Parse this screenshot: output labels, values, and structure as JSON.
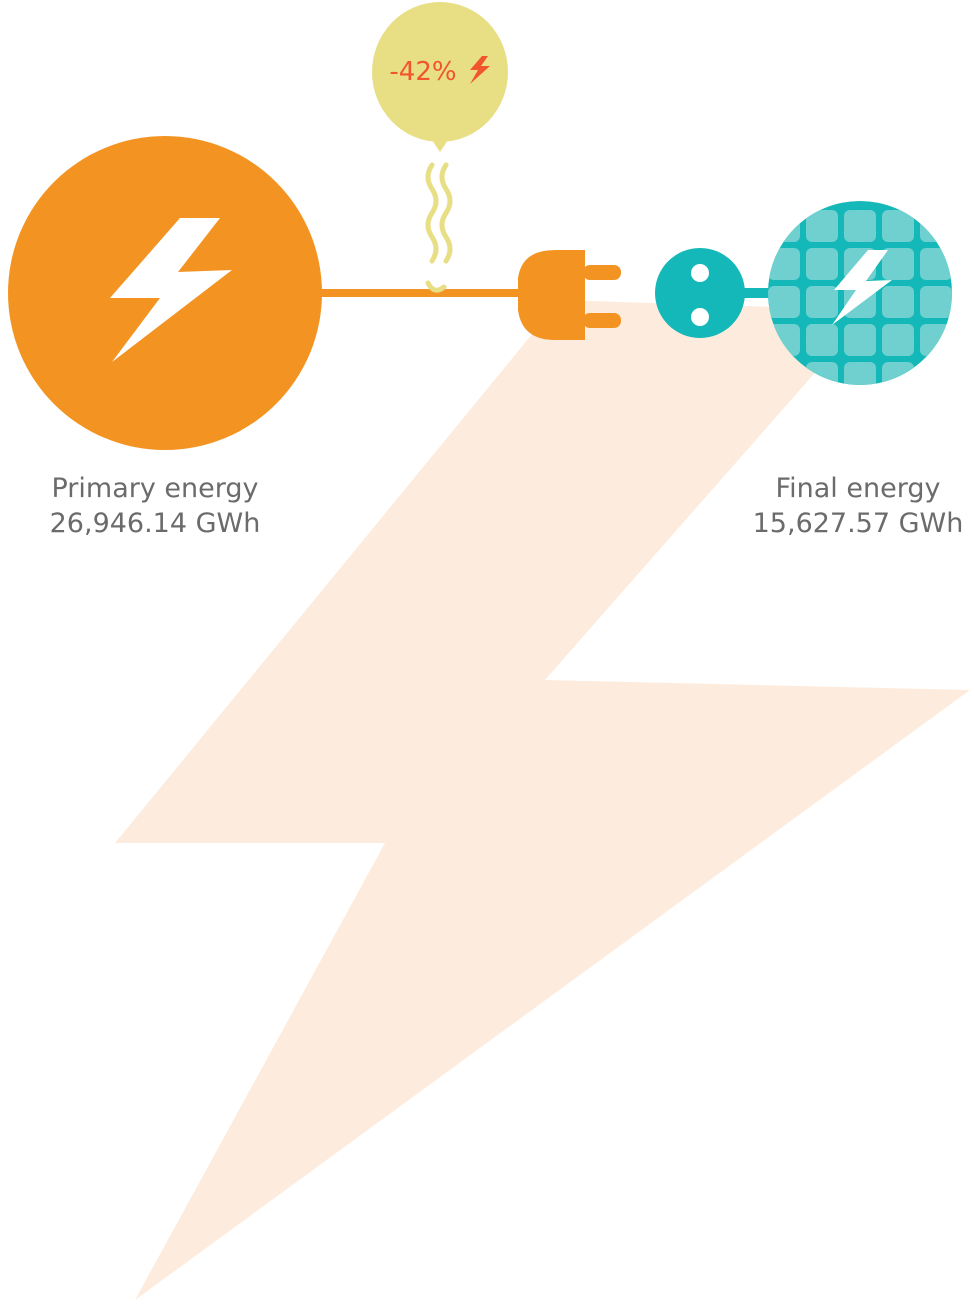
{
  "balloon": {
    "label": "-42%"
  },
  "primary": {
    "label": "Primary energy",
    "value": "26,946.14 GWh"
  },
  "final": {
    "label": "Final energy",
    "value": "15,627.57 GWh"
  }
}
